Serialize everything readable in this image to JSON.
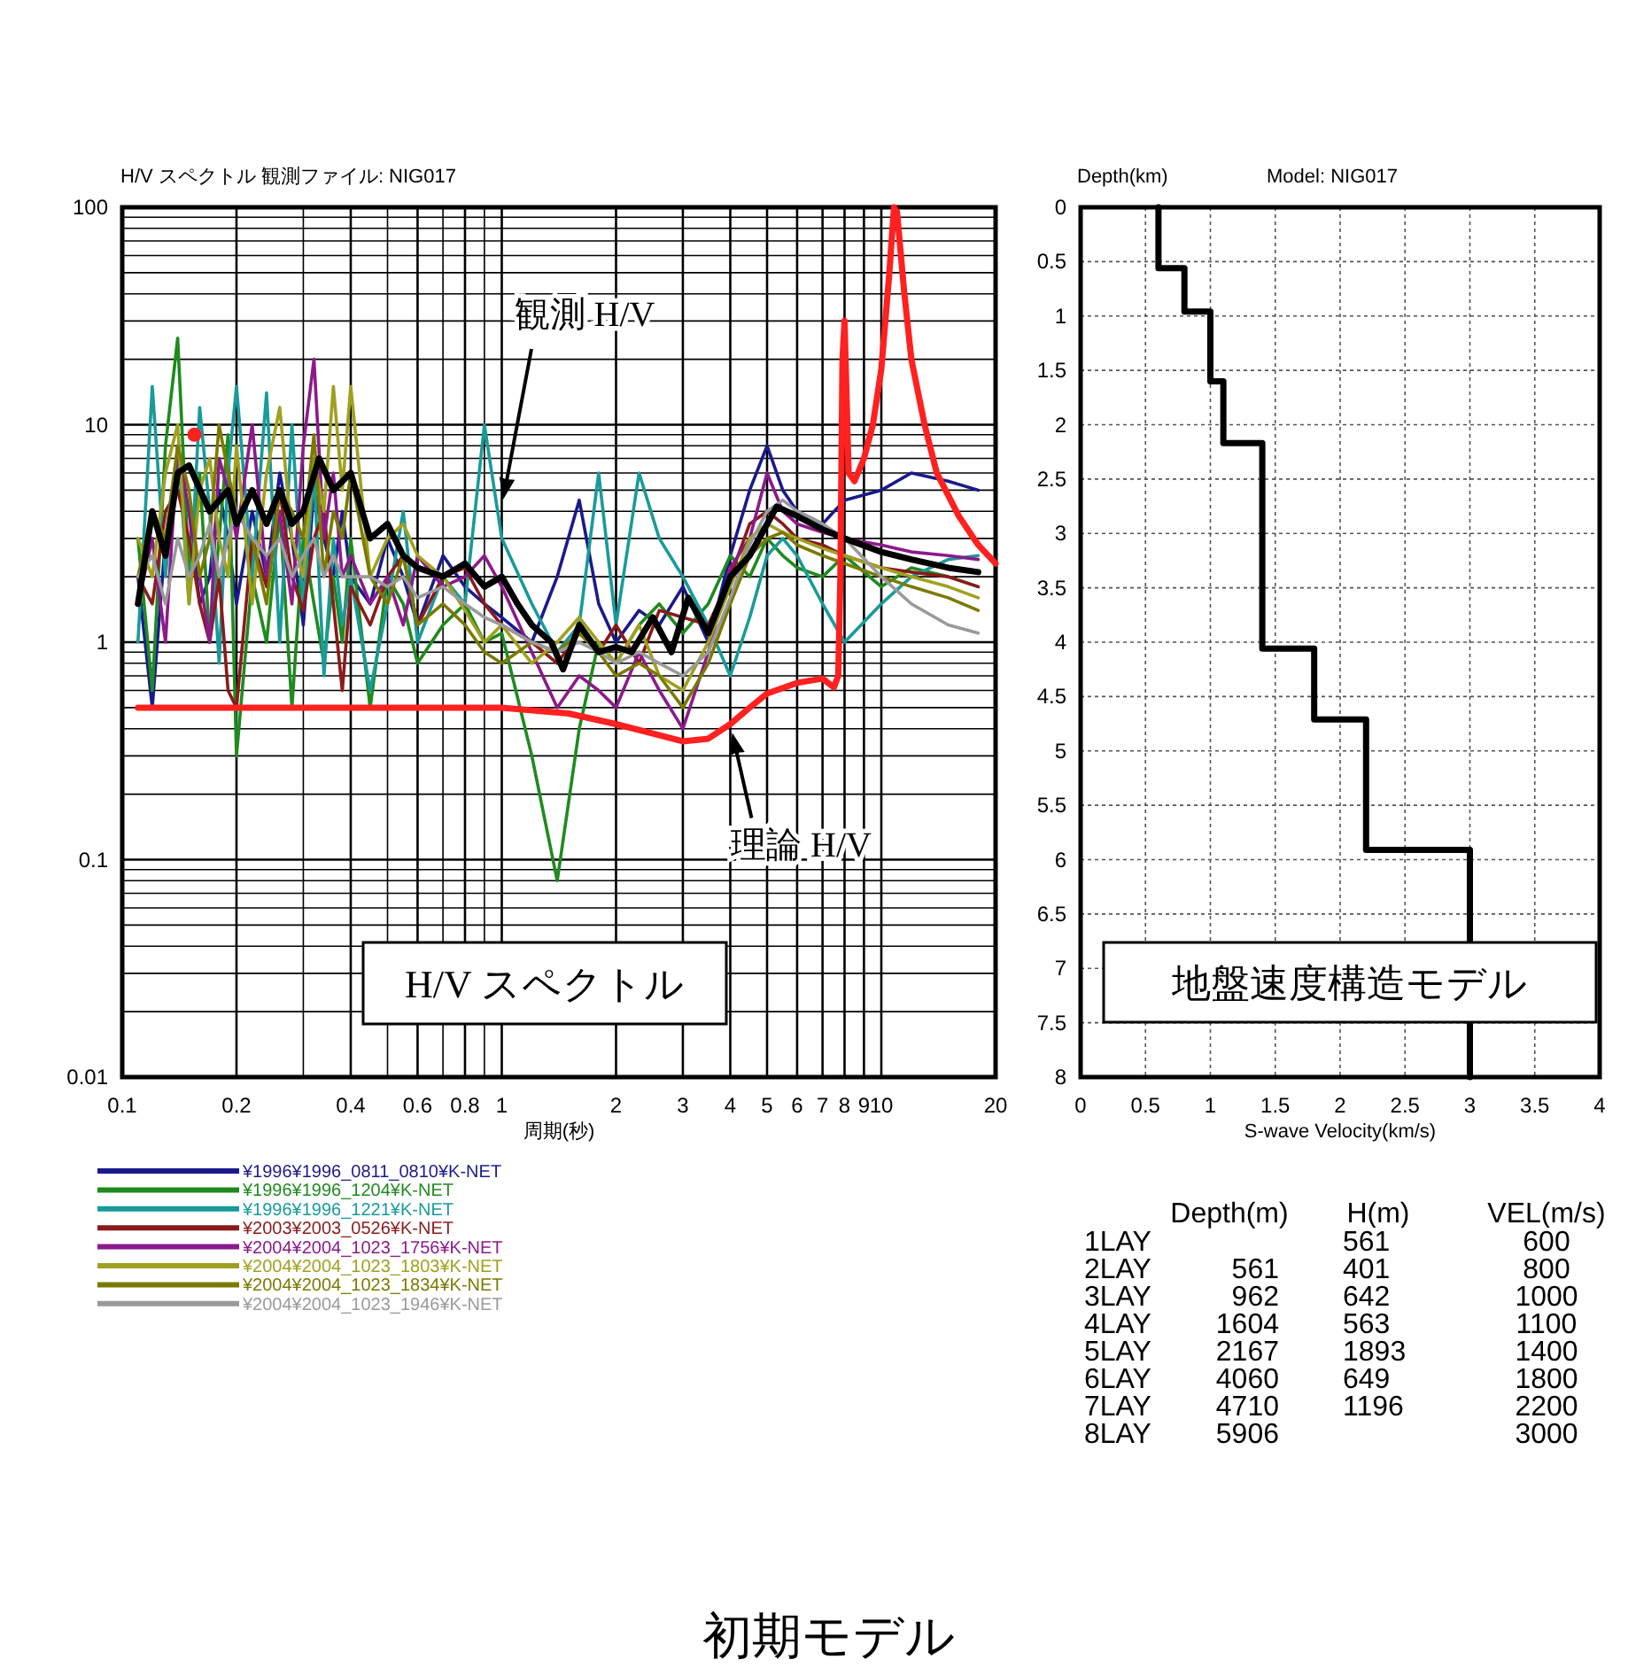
{
  "chart_data": [
    {
      "type": "line",
      "title": "H/V スペクトル 観測ファイル: NIG017",
      "xlabel": "周期(秒)",
      "log": "xy",
      "grid": true,
      "legend": "bottom",
      "xlim": [
        0.1,
        20
      ],
      "ylim": [
        0.01,
        100
      ],
      "xticks": [
        0.1,
        0.2,
        {
          "value": 0.3,
          "label": null
        },
        0.4,
        {
          "value": 0.5,
          "label": null
        },
        0.6,
        {
          "value": 0.7,
          "label": null
        },
        0.8,
        {
          "value": 0.9,
          "label": null
        },
        1,
        2,
        3,
        4,
        5,
        6,
        7,
        8,
        9,
        10,
        20
      ],
      "yticks": [
        0.01,
        {
          "value": 0.02,
          "label": null
        },
        {
          "value": 0.03,
          "label": null
        },
        {
          "value": 0.04,
          "label": null
        },
        {
          "value": 0.05,
          "label": null
        },
        {
          "value": 0.06,
          "label": null
        },
        {
          "value": 0.07,
          "label": null
        },
        {
          "value": 0.08,
          "label": null
        },
        {
          "value": 0.09,
          "label": null
        },
        0.1,
        {
          "value": 0.2,
          "label": null
        },
        {
          "value": 0.3,
          "label": null
        },
        {
          "value": 0.4,
          "label": null
        },
        {
          "value": 0.5,
          "label": null
        },
        {
          "value": 0.6,
          "label": null
        },
        {
          "value": 0.7,
          "label": null
        },
        {
          "value": 0.8,
          "label": null
        },
        {
          "value": 0.9,
          "label": null
        },
        1,
        {
          "value": 2,
          "label": null
        },
        {
          "value": 3,
          "label": null
        },
        {
          "value": 4,
          "label": null
        },
        {
          "value": 5,
          "label": null
        },
        {
          "value": 6,
          "label": null
        },
        {
          "value": 7,
          "label": null
        },
        {
          "value": 8,
          "label": null
        },
        {
          "value": 9,
          "label": null
        },
        10,
        {
          "value": 20,
          "label": null
        },
        {
          "value": 30,
          "label": null
        },
        {
          "value": 40,
          "label": null
        },
        {
          "value": 50,
          "label": null
        },
        {
          "value": 60,
          "label": null
        },
        {
          "value": 70,
          "label": null
        },
        {
          "value": 80,
          "label": null
        },
        {
          "value": 90,
          "label": null
        },
        100
      ],
      "x": [
        0.11,
        0.12,
        0.13,
        0.14,
        0.15,
        0.16,
        0.17,
        0.18,
        0.19,
        0.2,
        0.22,
        0.24,
        0.26,
        0.28,
        0.3,
        0.32,
        0.34,
        0.36,
        0.38,
        0.4,
        0.45,
        0.5,
        0.55,
        0.6,
        0.7,
        0.8,
        0.9,
        1.0,
        1.2,
        1.4,
        1.6,
        1.8,
        2.0,
        2.3,
        2.6,
        3.0,
        3.5,
        4.0,
        4.5,
        5.0,
        5.5,
        6.0,
        7.0,
        8.0,
        10,
        12,
        15,
        18
      ],
      "series": [
        {
          "name": "¥1996¥1996_0811_0810¥K-NET",
          "color": "#1a1a8c",
          "values": [
            2,
            0.5,
            3,
            6,
            4,
            1.5,
            2,
            5,
            3,
            1.5,
            4,
            2,
            6,
            3,
            1.2,
            5,
            3,
            2,
            4,
            2,
            1.5,
            3,
            2,
            1.2,
            2.5,
            1.8,
            1.5,
            1.3,
            1.0,
            2.0,
            4.5,
            1.5,
            1.0,
            1.4,
            1.2,
            1.8,
            1.0,
            2.5,
            5,
            8,
            5,
            4,
            3.5,
            4.5,
            5,
            6,
            5.5,
            5
          ]
        },
        {
          "name": "¥1996¥1996_1204¥K-NET",
          "color": "#1f8a1f",
          "values": [
            3,
            0.6,
            8,
            25,
            2,
            6,
            1,
            3,
            9,
            0.3,
            2,
            1,
            4,
            0.5,
            3,
            1.5,
            0.8,
            2,
            1,
            3,
            0.5,
            2,
            1.5,
            0.8,
            1.2,
            1.5,
            1.0,
            1.1,
            0.3,
            0.08,
            0.4,
            1.0,
            0.8,
            1.2,
            1.5,
            1.1,
            1.5,
            2.5,
            2.0,
            3,
            2.5,
            2.2,
            2.0,
            2.5,
            1.8,
            2.2,
            2.0,
            1.8
          ]
        },
        {
          "name": "¥1996¥1996_1221¥K-NET",
          "color": "#1a9a9a",
          "values": [
            1,
            15,
            2,
            8,
            1.5,
            12,
            4,
            0.8,
            6,
            15,
            2,
            14,
            1,
            10,
            1.5,
            6,
            0.7,
            3,
            1.2,
            2,
            0.6,
            1.5,
            4,
            1,
            2,
            1.5,
            10,
            3,
            1.5,
            0.9,
            1.2,
            6,
            1.2,
            6,
            3,
            2,
            1.2,
            0.7,
            1.3,
            2.5,
            3,
            2.5,
            1.5,
            1.0,
            1.5,
            2.0,
            2.4,
            2.5
          ]
        },
        {
          "name": "¥2003¥2003_0526¥K-NET",
          "color": "#8b1a1a",
          "values": [
            2,
            1.5,
            4,
            5,
            3,
            1.5,
            1,
            2,
            0.6,
            0.5,
            3,
            1.8,
            5,
            2,
            1.4,
            3,
            4,
            1.5,
            0.6,
            1.8,
            1.2,
            2,
            2.5,
            1.2,
            2,
            2.2,
            1.5,
            1.2,
            1.0,
            0.8,
            1.1,
            0.9,
            1.2,
            0.8,
            1.4,
            1.3,
            1.2,
            2,
            3.5,
            4,
            3.5,
            3,
            2.8,
            2.5,
            2.2,
            2.1,
            2.0,
            1.8
          ]
        },
        {
          "name": "¥2004¥2004_1023_1756¥K-NET",
          "color": "#8b1a8b",
          "values": [
            1.5,
            3,
            1,
            8,
            4,
            2,
            1,
            7,
            5,
            3,
            10,
            2,
            4,
            1.5,
            8,
            20,
            3,
            6,
            2,
            2.5,
            1.5,
            2,
            1.2,
            2.5,
            1.8,
            2,
            2.5,
            1.8,
            0.9,
            0.5,
            0.7,
            0.6,
            0.5,
            0.9,
            0.6,
            0.4,
            0.9,
            2.2,
            3,
            6,
            4,
            3.5,
            3.2,
            3,
            2.8,
            2.6,
            2.5,
            2.4
          ]
        },
        {
          "name": "¥2004¥2004_1023_1803¥K-NET",
          "color": "#a0a020",
          "values": [
            3,
            2,
            6,
            10,
            1.5,
            5,
            7,
            3,
            2,
            8,
            1.5,
            6,
            12,
            3,
            2,
            7,
            4,
            15,
            5,
            15,
            2,
            3,
            3.5,
            2.5,
            2,
            1.4,
            1.0,
            1.2,
            0.8,
            1.0,
            1.3,
            1.0,
            0.8,
            1.2,
            0.7,
            0.6,
            1.0,
            1.8,
            3,
            3.5,
            3.2,
            3,
            2.7,
            2.5,
            2.2,
            2.0,
            1.8,
            1.6
          ]
        },
        {
          "name": "¥2004¥2004_1023_1834¥K-NET",
          "color": "#7a7a00",
          "values": [
            2,
            4,
            3,
            8,
            5,
            2,
            3,
            10,
            6,
            4,
            3,
            1.5,
            5,
            4,
            3,
            9,
            2,
            4,
            3,
            6,
            2,
            1.5,
            2.5,
            1.2,
            1.5,
            1.2,
            0.9,
            0.8,
            1.0,
            0.9,
            1.1,
            0.9,
            0.7,
            0.8,
            0.7,
            0.5,
            0.8,
            1.5,
            2.5,
            3,
            3.2,
            2.8,
            2.5,
            2.3,
            2.0,
            1.8,
            1.6,
            1.4
          ]
        },
        {
          "name": "¥2004¥2004_1023_1946¥K-NET",
          "color": "#9a9a9a",
          "values": [
            2,
            2.5,
            1.5,
            3,
            2,
            2.5,
            3.5,
            2,
            3,
            4,
            3,
            2.5,
            3,
            2,
            2.5,
            3,
            2,
            2.5,
            2,
            2,
            2,
            1.8,
            2,
            1.6,
            1.8,
            1.5,
            1.3,
            1.2,
            1.0,
            0.9,
            1.0,
            0.9,
            0.8,
            0.9,
            0.8,
            0.7,
            0.9,
            1.6,
            2.8,
            4,
            4.5,
            4,
            3.5,
            3,
            2,
            1.5,
            1.2,
            1.1
          ]
        },
        {
          "color": "#000000",
          "x": [
            0.11,
            0.12,
            0.13,
            0.14,
            0.15,
            0.17,
            0.19,
            0.2,
            0.22,
            0.24,
            0.26,
            0.28,
            0.3,
            0.33,
            0.36,
            0.4,
            0.45,
            0.5,
            0.55,
            0.6,
            0.7,
            0.8,
            0.9,
            1.0,
            1.1,
            1.2,
            1.35,
            1.45,
            1.6,
            1.8,
            2.0,
            2.2,
            2.5,
            2.8,
            3.1,
            3.5,
            4.0,
            4.5,
            5.3,
            6.0,
            7.0,
            8.0,
            10,
            12,
            15,
            18
          ],
          "values": [
            1.5,
            4,
            2.5,
            6,
            6.5,
            4,
            5,
            3.5,
            5,
            3.5,
            5,
            3.5,
            4,
            7,
            5,
            6,
            3,
            3.5,
            2.5,
            2.2,
            2.0,
            2.3,
            1.8,
            2.0,
            1.5,
            1.2,
            1.0,
            0.75,
            1.2,
            0.9,
            0.95,
            0.9,
            1.3,
            0.9,
            1.6,
            1.1,
            2.0,
            2.5,
            4.2,
            3.8,
            3.3,
            3.0,
            2.6,
            2.4,
            2.2,
            2.1
          ]
        },
        {
          "color": "#ff2020",
          "x": [
            0.11,
            0.5,
            1.0,
            1.5,
            2.0,
            2.5,
            3.0,
            3.5,
            4.0,
            4.5,
            5.0,
            6.0,
            7.0,
            7.5,
            7.7,
            7.8,
            7.9,
            8.0,
            8.2,
            8.5,
            9.0,
            9.5,
            10.0,
            10.5,
            10.8,
            11.0,
            11.5,
            12,
            13,
            14,
            16,
            18,
            20
          ],
          "values": [
            0.5,
            0.5,
            0.5,
            0.47,
            0.42,
            0.38,
            0.35,
            0.36,
            0.42,
            0.5,
            0.58,
            0.65,
            0.68,
            0.62,
            0.7,
            2,
            20,
            30,
            6,
            5.5,
            7,
            10,
            18,
            50,
            100,
            95,
            40,
            20,
            10,
            6,
            3.8,
            2.8,
            2.3
          ]
        },
        {
          "type": "scatter",
          "marker": "circle",
          "color": "#ff2020",
          "x": [
            0.155
          ],
          "values": [
            9
          ]
        }
      ],
      "annotations": [
        "観測 H/V",
        {
          "text": "理論 H/V",
          "x": 4.0,
          "y": 0.42
        },
        "H/V スペクトル"
      ]
    },
    {
      "type": "line",
      "title": "Model: NIG017",
      "ylabel": "Depth(km)",
      "xlabel": "S-wave Velocity(km/s)",
      "grid": true,
      "xlim": [
        0,
        4
      ],
      "ylim": [
        8,
        0
      ],
      "xticks": [
        0,
        0.5,
        1,
        1.5,
        2,
        2.5,
        3,
        3.5,
        4
      ],
      "yticks": [
        0,
        0.5,
        1,
        1.5,
        2,
        2.5,
        3,
        3.5,
        4,
        4.5,
        5,
        5.5,
        6,
        6.5,
        7,
        7.5,
        8
      ],
      "series": [
        {
          "color": "#000000",
          "x": [
            0.6,
            0.6,
            0.8,
            0.8,
            1.0,
            1.0,
            1.1,
            1.1,
            1.4,
            1.4,
            1.8,
            1.8,
            2.2,
            2.2,
            3.0,
            3.0
          ],
          "values": [
            0,
            0.56,
            0.56,
            0.96,
            0.96,
            1.6,
            1.6,
            2.17,
            2.17,
            4.06,
            4.06,
            4.71,
            4.71,
            5.91,
            5.91,
            8
          ]
        }
      ],
      "annotations": [
        "地盤速度構造モデル"
      ]
    },
    {
      "type": "heatmap",
      "data_labels": true,
      "categories": [
        "Depth(m)",
        "H(m)",
        "VEL(m/s)"
      ],
      "y_categories": [
        "1LAY",
        "2LAY",
        "3LAY",
        "4LAY",
        "5LAY",
        "6LAY",
        "7LAY",
        "8LAY"
      ],
      "cells": [
        [
          null,
          561,
          600
        ],
        [
          561,
          401,
          800
        ],
        [
          962,
          642,
          1000
        ],
        [
          1604,
          563,
          1100
        ],
        [
          2167,
          1893,
          1400
        ],
        [
          4060,
          649,
          1800
        ],
        [
          4710,
          1196,
          2200
        ],
        [
          5906,
          null,
          3000
        ]
      ],
      "annotations": [
        "初期モデル"
      ]
    }
  ]
}
